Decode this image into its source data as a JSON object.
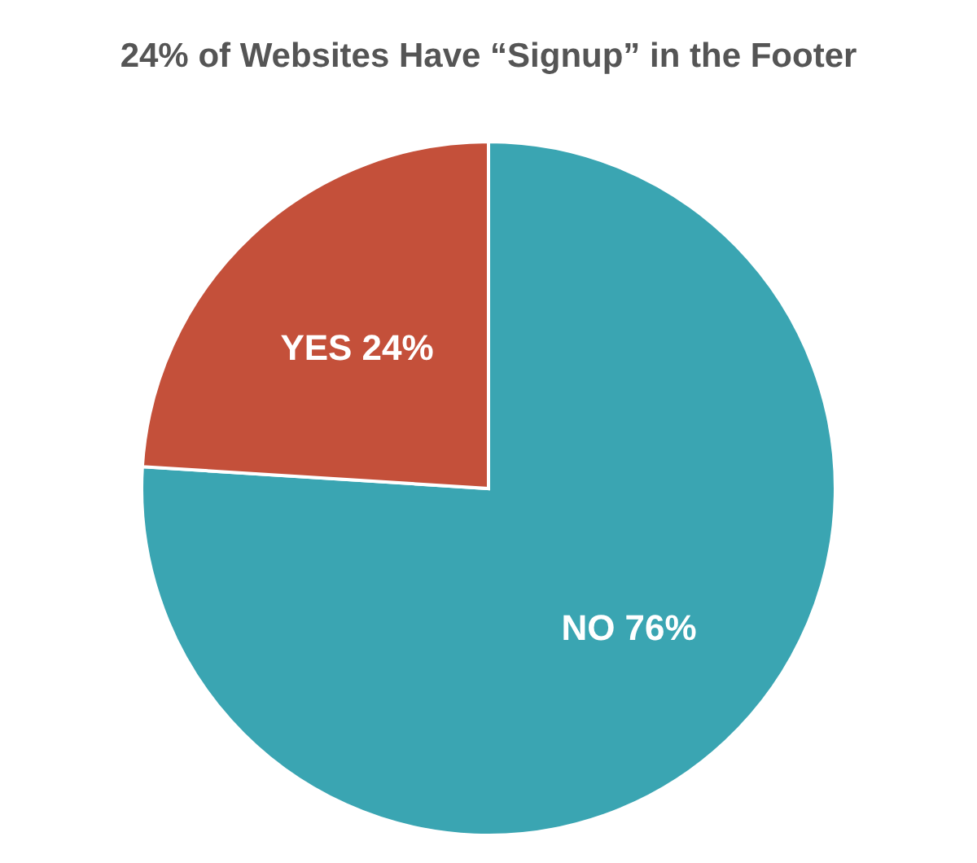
{
  "chart_data": {
    "type": "pie",
    "title": "24% of Websites Have “Signup” in the Footer",
    "categories": [
      "NO",
      "YES"
    ],
    "values": [
      76,
      24
    ],
    "colors": [
      "#3aa5b2",
      "#c4503a"
    ],
    "value_labels": [
      "76%",
      "24%"
    ]
  }
}
